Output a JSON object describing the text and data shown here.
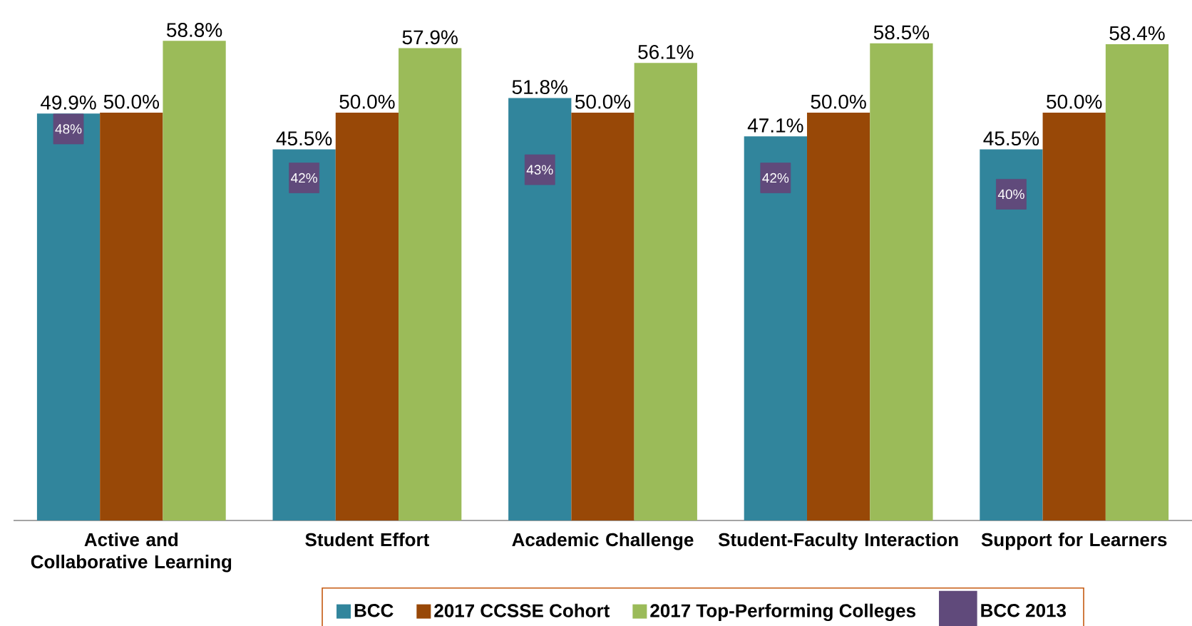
{
  "chart_data": {
    "type": "bar",
    "categories": [
      "Active and Collaborative Learning",
      "Student Effort",
      "Academic Challenge",
      "Student-Faculty Interaction",
      "Support for Learners"
    ],
    "legend": "bottom",
    "series": [
      {
        "name": "BCC",
        "color": "#31859c",
        "values": [
          49.9,
          45.5,
          51.8,
          47.1,
          45.5
        ],
        "value_labels": [
          "49.9%",
          "45.5%",
          "51.8%",
          "47.1%",
          "45.5%"
        ]
      },
      {
        "name": "2017 CCSSE Cohort",
        "color": "#984807",
        "values": [
          50.0,
          50.0,
          50.0,
          50.0,
          50.0
        ],
        "value_labels": [
          "50.0%",
          "50.0%",
          "50.0%",
          "50.0%",
          "50.0%"
        ]
      },
      {
        "name": "2017 Top-Performing Colleges",
        "color": "#9bbb59",
        "values": [
          58.8,
          57.9,
          56.1,
          58.5,
          58.4
        ],
        "value_labels": [
          "58.8%",
          "57.9%",
          "56.1%",
          "58.5%",
          "58.4%"
        ]
      },
      {
        "name": "BCC 2013",
        "type": "scatter",
        "marker": "square",
        "color": "#604a7b",
        "x": [
          "Active and Collaborative Learning",
          "Student Effort",
          "Academic Challenge",
          "Student-Faculty Interaction",
          "Support for Learners"
        ],
        "values": [
          48,
          42,
          43,
          42,
          40
        ],
        "value_labels": [
          "48%",
          "42%",
          "43%",
          "42%",
          "40%"
        ]
      }
    ]
  }
}
